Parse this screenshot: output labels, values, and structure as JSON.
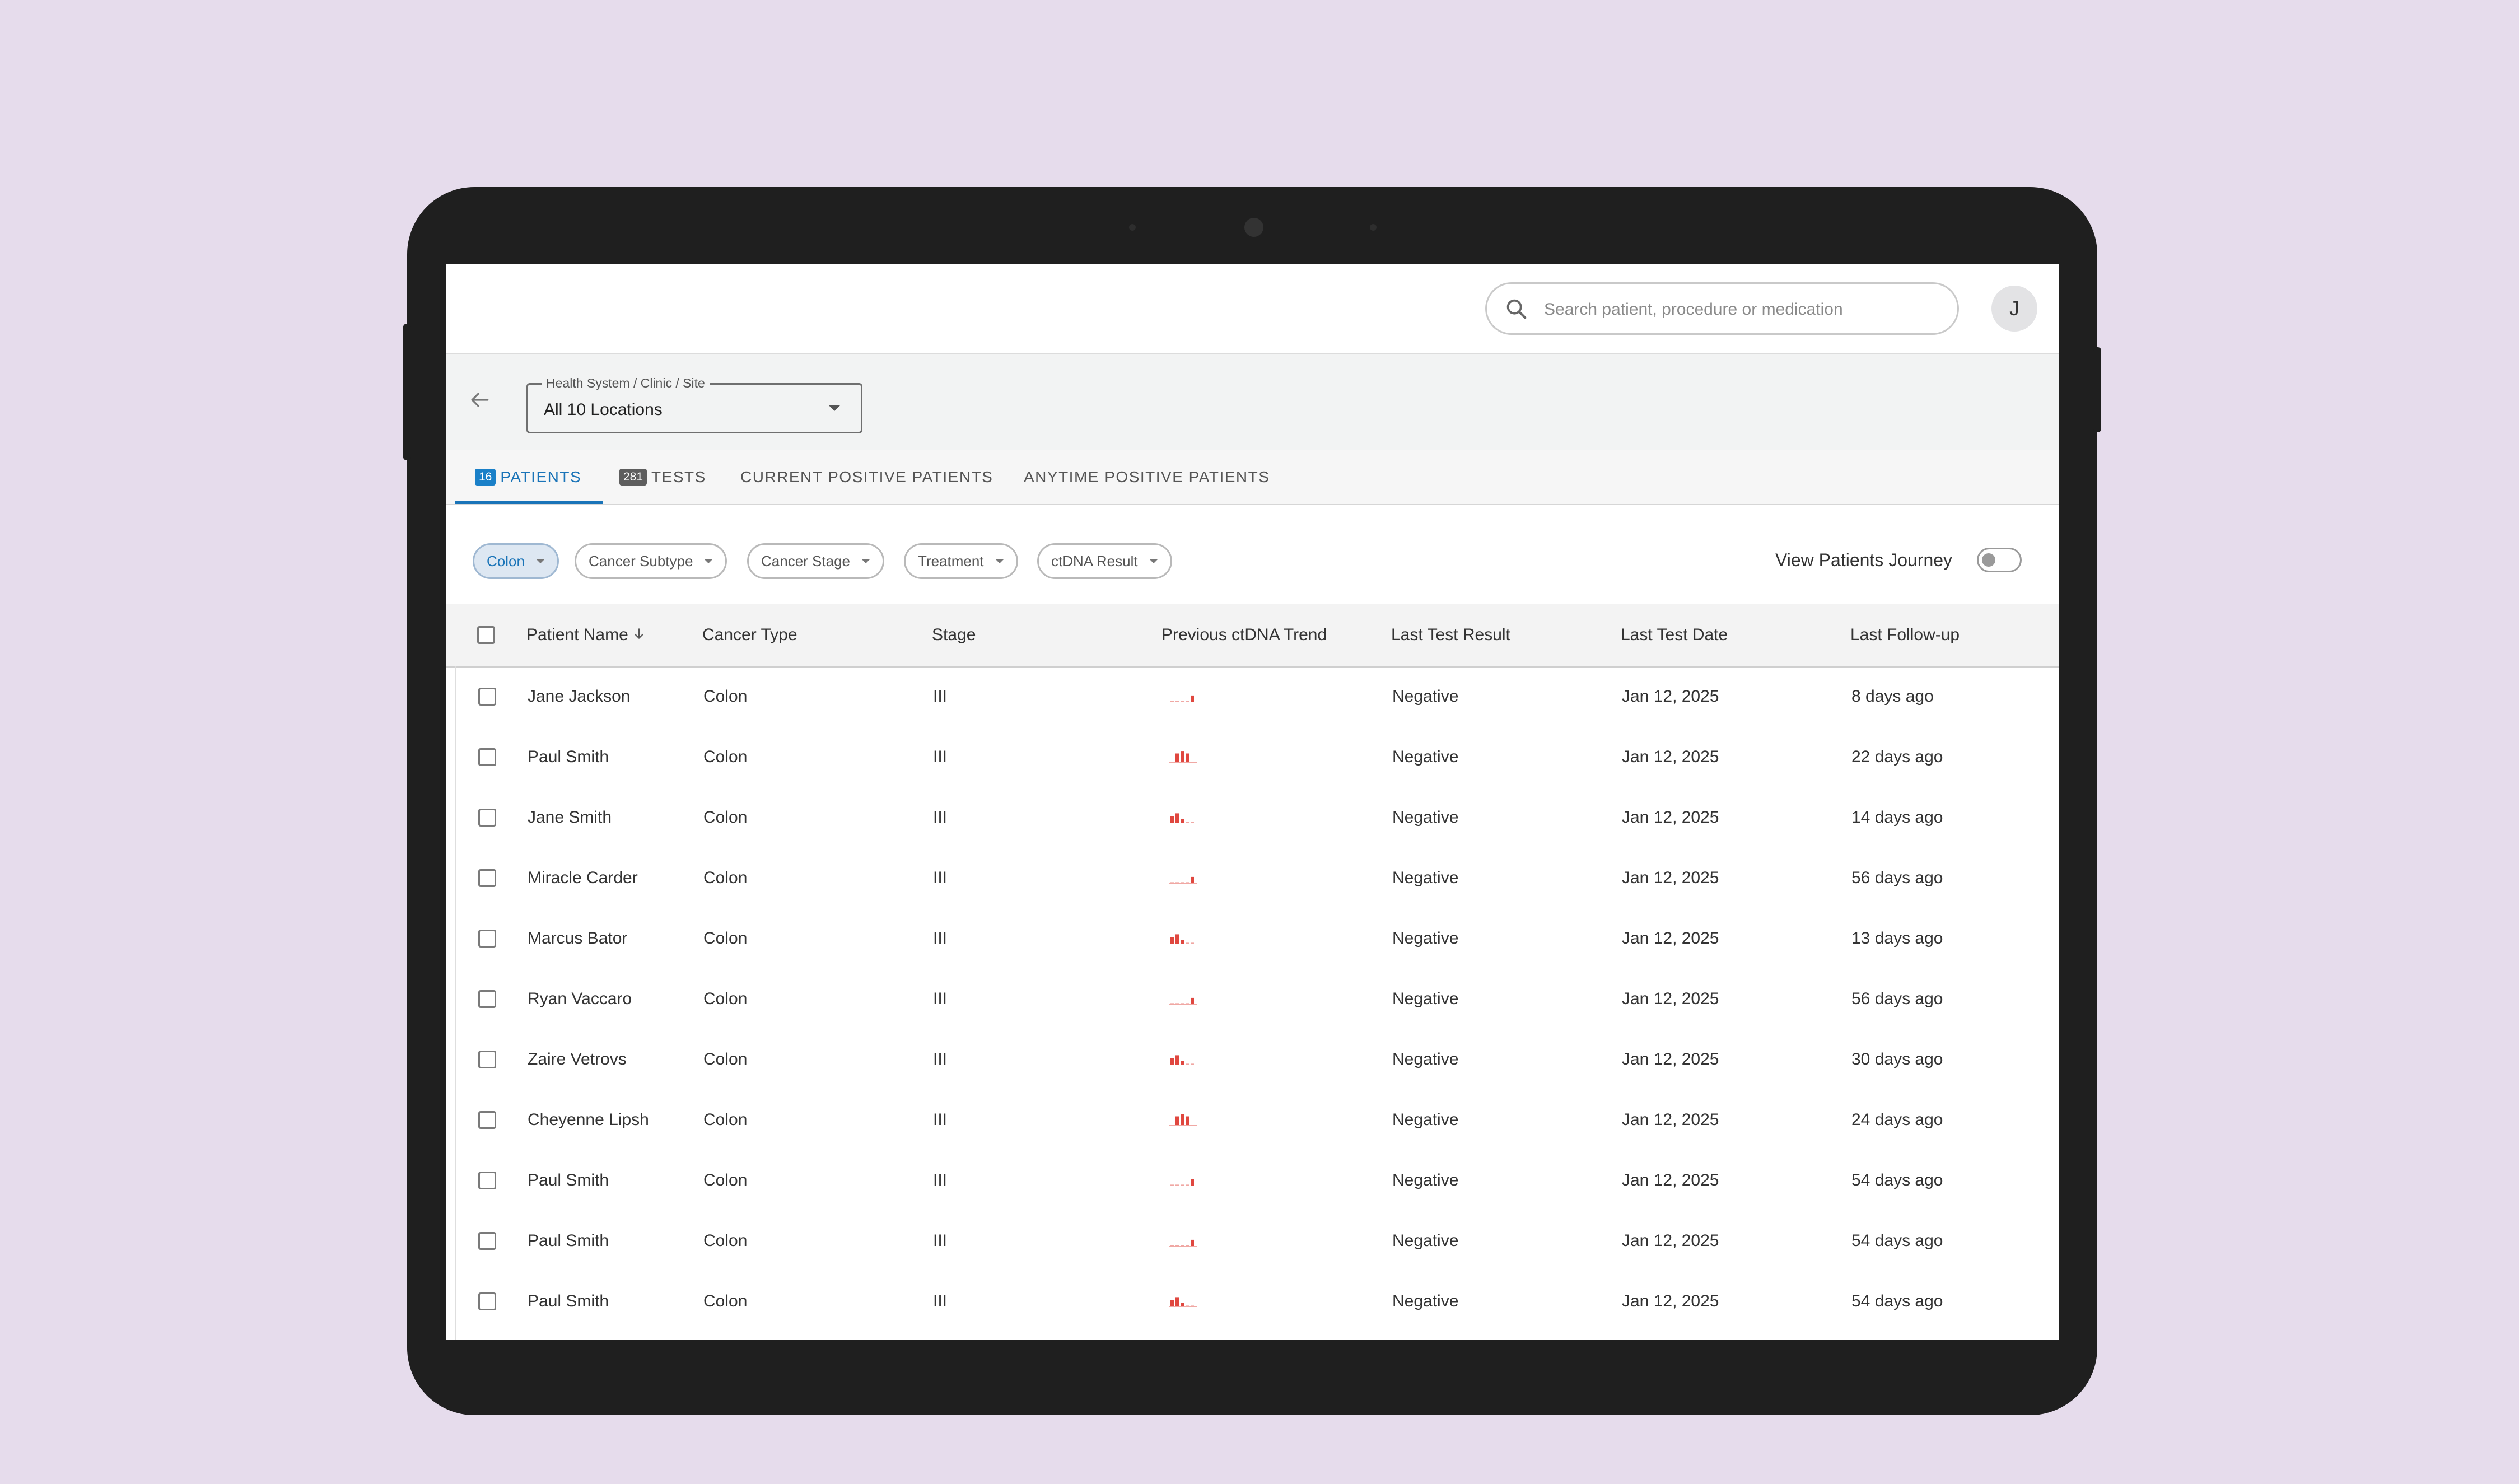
{
  "search": {
    "placeholder": "Search patient, procedure or medication"
  },
  "user": {
    "avatar_initial": "J"
  },
  "location": {
    "label": "Health System / Clinic / Site",
    "value": "All 10 Locations"
  },
  "tabs": [
    {
      "badge": "16",
      "label": "PATIENTS",
      "active": true
    },
    {
      "badge": "281",
      "label": "TESTS",
      "active": false
    },
    {
      "label": "CURRENT POSITIVE PATIENTS",
      "active": false
    },
    {
      "label": "ANYTIME POSITIVE PATIENTS",
      "active": false
    }
  ],
  "filters": [
    {
      "label": "Colon",
      "selected": true
    },
    {
      "label": "Cancer Subtype",
      "selected": false
    },
    {
      "label": "Cancer Stage",
      "selected": false
    },
    {
      "label": "Treatment",
      "selected": false
    },
    {
      "label": "ctDNA Result",
      "selected": false
    }
  ],
  "journey": {
    "label": "View Patients Journey",
    "enabled": false
  },
  "table": {
    "columns": [
      "Patient Name",
      "Cancer Type",
      "Stage",
      "Previous ctDNA Trend",
      "Last Test Result",
      "Last Test Date",
      "Last Follow-up"
    ],
    "rows": [
      {
        "name": "Jane Jackson",
        "type": "Colon",
        "stage": "III",
        "trend": "rising-end",
        "result": "Negative",
        "date": "Jan 12, 2025",
        "followup": "8 days ago"
      },
      {
        "name": "Paul Smith",
        "type": "Colon",
        "stage": "III",
        "trend": "high-cluster",
        "result": "Negative",
        "date": "Jan 12, 2025",
        "followup": "22 days ago"
      },
      {
        "name": "Jane Smith",
        "type": "Colon",
        "stage": "III",
        "trend": "early-peak",
        "result": "Negative",
        "date": "Jan 12, 2025",
        "followup": "14 days ago"
      },
      {
        "name": "Miracle Carder",
        "type": "Colon",
        "stage": "III",
        "trend": "rising-end",
        "result": "Negative",
        "date": "Jan 12, 2025",
        "followup": "56 days ago"
      },
      {
        "name": "Marcus Bator",
        "type": "Colon",
        "stage": "III",
        "trend": "early-peak",
        "result": "Negative",
        "date": "Jan 12, 2025",
        "followup": "13 days ago"
      },
      {
        "name": "Ryan Vaccaro",
        "type": "Colon",
        "stage": "III",
        "trend": "rising-end",
        "result": "Negative",
        "date": "Jan 12, 2025",
        "followup": "56 days ago"
      },
      {
        "name": "Zaire Vetrovs",
        "type": "Colon",
        "stage": "III",
        "trend": "early-peak",
        "result": "Negative",
        "date": "Jan 12, 2025",
        "followup": "30 days ago"
      },
      {
        "name": "Cheyenne Lipsh",
        "type": "Colon",
        "stage": "III",
        "trend": "high-cluster",
        "result": "Negative",
        "date": "Jan 12, 2025",
        "followup": "24 days ago"
      },
      {
        "name": "Paul Smith",
        "type": "Colon",
        "stage": "III",
        "trend": "rising-end",
        "result": "Negative",
        "date": "Jan 12, 2025",
        "followup": "54 days ago"
      },
      {
        "name": "Paul Smith",
        "type": "Colon",
        "stage": "III",
        "trend": "rising-end",
        "result": "Negative",
        "date": "Jan 12, 2025",
        "followup": "54 days ago"
      },
      {
        "name": "Paul Smith",
        "type": "Colon",
        "stage": "III",
        "trend": "early-peak",
        "result": "Negative",
        "date": "Jan 12, 2025",
        "followup": "54 days ago"
      }
    ]
  },
  "colors": {
    "accent": "#1a74b8",
    "trend": "#e0473f",
    "background": "#e6dcec",
    "device": "#1f1f1f"
  },
  "icons": {
    "search": "search-icon",
    "back": "arrow-left-icon",
    "sort": "arrow-down-icon"
  }
}
